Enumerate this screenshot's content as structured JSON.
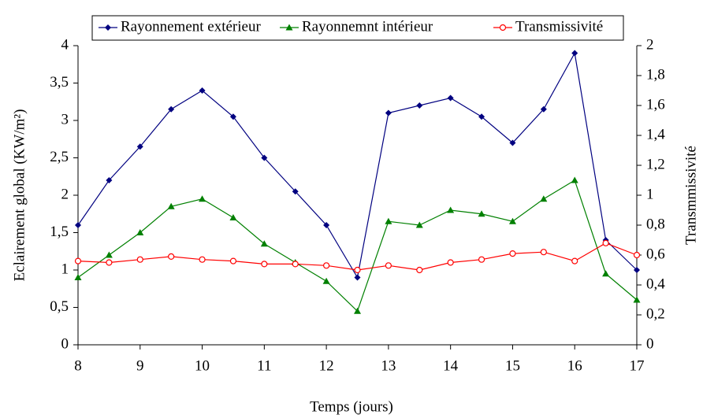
{
  "chart_data": {
    "type": "line",
    "xlabel": "Temps (jours)",
    "ylabel": "Eclairement global (KW/m²)",
    "y2label": "Transmmissivité",
    "x": [
      8,
      8.5,
      9,
      9.5,
      10,
      10.5,
      11,
      11.5,
      12,
      12.5,
      13,
      13.5,
      14,
      14.5,
      15,
      15.5,
      16,
      16.5,
      17
    ],
    "series": [
      {
        "name": "Rayonnement extérieur",
        "color": "#000080",
        "marker": "diamond",
        "values": [
          1.6,
          2.2,
          2.65,
          3.15,
          3.4,
          3.05,
          2.5,
          2.05,
          1.6,
          0.9,
          3.1,
          3.2,
          3.3,
          3.05,
          2.7,
          3.15,
          3.9,
          1.4,
          1.0
        ]
      },
      {
        "name": "Rayonnemnt intérieur",
        "color": "#008000",
        "marker": "triangle",
        "values": [
          0.9,
          1.2,
          1.5,
          1.85,
          1.95,
          1.7,
          1.35,
          1.1,
          0.85,
          0.45,
          1.65,
          1.6,
          1.8,
          1.75,
          1.65,
          1.95,
          2.2,
          0.95,
          0.6
        ]
      },
      {
        "name": "Transmissivité",
        "color": "#ff0000",
        "marker": "circle",
        "axis": "y2",
        "values": [
          0.56,
          0.55,
          0.57,
          0.59,
          0.57,
          0.56,
          0.54,
          0.54,
          0.53,
          0.5,
          0.53,
          0.5,
          0.55,
          0.57,
          0.61,
          0.62,
          0.56,
          0.68,
          0.6
        ]
      }
    ],
    "xlim": [
      8,
      17
    ],
    "xticks": [
      8,
      9,
      10,
      11,
      12,
      13,
      14,
      15,
      16,
      17
    ],
    "ylim": [
      0,
      4
    ],
    "yticks": [
      0,
      {
        "value": 0.5,
        "label": "0,5"
      },
      1,
      {
        "value": 1.5,
        "label": "1,5"
      },
      2,
      {
        "value": 2.5,
        "label": "2,5"
      },
      3,
      {
        "value": 3.5,
        "label": "3,5"
      },
      4
    ],
    "y2lim": [
      0,
      2
    ],
    "y2ticks": [
      0,
      {
        "value": 0.2,
        "label": "0,2"
      },
      {
        "value": 0.4,
        "label": "0,4"
      },
      {
        "value": 0.6,
        "label": "0,6"
      },
      {
        "value": 0.8,
        "label": "0,8"
      },
      1,
      {
        "value": 1.2,
        "label": "1,2"
      },
      {
        "value": 1.4,
        "label": "1,4"
      },
      {
        "value": 1.6,
        "label": "1,6"
      },
      {
        "value": 1.8,
        "label": "1,8"
      },
      2
    ]
  }
}
